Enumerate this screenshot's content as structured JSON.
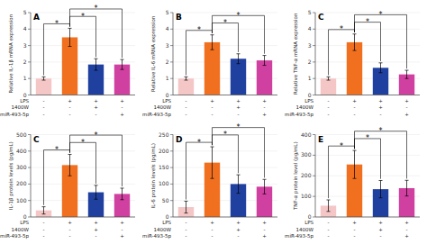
{
  "chart_data": [
    {
      "type": "bar",
      "title": "A",
      "y_label": "Relative IL-1β mRNA expression",
      "ylim": [
        0,
        5
      ],
      "yticks": [
        0,
        1,
        2,
        3,
        4,
        5
      ],
      "values": [
        1.0,
        3.5,
        1.85,
        1.85
      ],
      "errors": [
        0.1,
        0.55,
        0.35,
        0.3
      ],
      "colors": [
        "#f4c6c6",
        "#f07020",
        "#2040a0",
        "#d040a0"
      ],
      "x_rows": [
        {
          "label": "LPS",
          "signs": [
            "-",
            "+",
            "+",
            "+"
          ]
        },
        {
          "label": "1400W",
          "signs": [
            "-",
            "-",
            "+",
            "-"
          ]
        },
        {
          "label": "miR-493-5p",
          "signs": [
            "-",
            "-",
            "-",
            "+"
          ]
        }
      ],
      "brackets": [
        {
          "from": 0,
          "to": 1,
          "text": "*"
        },
        {
          "from": 1,
          "to": 2,
          "text": "*"
        },
        {
          "from": 1,
          "to": 3,
          "text": "*"
        }
      ]
    },
    {
      "type": "bar",
      "title": "B",
      "y_label": "Relative IL-6 mRNA expression",
      "ylim": [
        0,
        5
      ],
      "yticks": [
        0,
        1,
        2,
        3,
        4,
        5
      ],
      "values": [
        1.0,
        3.2,
        2.2,
        2.1
      ],
      "errors": [
        0.1,
        0.45,
        0.3,
        0.3
      ],
      "colors": [
        "#f4c6c6",
        "#f07020",
        "#2040a0",
        "#d040a0"
      ],
      "x_rows": [
        {
          "label": "LPS",
          "signs": [
            "-",
            "+",
            "+",
            "+"
          ]
        },
        {
          "label": "1400W",
          "signs": [
            "-",
            "-",
            "+",
            "-"
          ]
        },
        {
          "label": "miR-493-5p",
          "signs": [
            "-",
            "-",
            "-",
            "+"
          ]
        }
      ],
      "brackets": [
        {
          "from": 0,
          "to": 1,
          "text": "*"
        },
        {
          "from": 1,
          "to": 2,
          "text": "*"
        },
        {
          "from": 1,
          "to": 3,
          "text": "*"
        }
      ]
    },
    {
      "type": "bar",
      "title": "C",
      "y_label": "Relative TNF-α mRNA expression",
      "ylim": [
        0,
        5
      ],
      "yticks": [
        0,
        1,
        2,
        3,
        4,
        5
      ],
      "values": [
        1.0,
        3.2,
        1.65,
        1.25
      ],
      "errors": [
        0.1,
        0.5,
        0.3,
        0.25
      ],
      "colors": [
        "#f4c6c6",
        "#f07020",
        "#2040a0",
        "#d040a0"
      ],
      "x_rows": [
        {
          "label": "LPS",
          "signs": [
            "-",
            "+",
            "+",
            "+"
          ]
        },
        {
          "label": "1400W",
          "signs": [
            "-",
            "-",
            "+",
            "-"
          ]
        },
        {
          "label": "miR-493-5p",
          "signs": [
            "-",
            "-",
            "-",
            "+"
          ]
        }
      ],
      "brackets": [
        {
          "from": 0,
          "to": 1,
          "text": "*"
        },
        {
          "from": 1,
          "to": 2,
          "text": "*"
        },
        {
          "from": 1,
          "to": 3,
          "text": "*"
        }
      ]
    },
    {
      "type": "bar",
      "title": "C",
      "y_label": "IL-1β protein levels (pg/mL)",
      "ylim": [
        0,
        500
      ],
      "yticks": [
        0,
        100,
        200,
        300,
        400,
        500
      ],
      "values": [
        40,
        315,
        150,
        140
      ],
      "errors": [
        22,
        65,
        42,
        35
      ],
      "colors": [
        "#f4c6c6",
        "#f07020",
        "#2040a0",
        "#d040a0"
      ],
      "x_rows": [
        {
          "label": "LPS",
          "signs": [
            "-",
            "+",
            "+",
            "+"
          ]
        },
        {
          "label": "1400W",
          "signs": [
            "-",
            "-",
            "+",
            "-"
          ]
        },
        {
          "label": "miR-493-5p",
          "signs": [
            "-",
            "-",
            "-",
            "+"
          ]
        }
      ],
      "brackets": [
        {
          "from": 0,
          "to": 1,
          "text": "*"
        },
        {
          "from": 1,
          "to": 2,
          "text": "*"
        },
        {
          "from": 1,
          "to": 3,
          "text": "*"
        }
      ]
    },
    {
      "type": "bar",
      "title": "D",
      "y_label": "IL-6 protein levels (pg/mL)",
      "ylim": [
        0,
        250
      ],
      "yticks": [
        0,
        50,
        100,
        150,
        200,
        250
      ],
      "values": [
        30,
        165,
        100,
        92
      ],
      "errors": [
        18,
        48,
        28,
        22
      ],
      "colors": [
        "#f4c6c6",
        "#f07020",
        "#2040a0",
        "#d040a0"
      ],
      "x_rows": [
        {
          "label": "LPS",
          "signs": [
            "-",
            "+",
            "+",
            "+"
          ]
        },
        {
          "label": "1400W",
          "signs": [
            "-",
            "-",
            "+",
            "-"
          ]
        },
        {
          "label": "miR-493-5p",
          "signs": [
            "-",
            "-",
            "-",
            "+"
          ]
        }
      ],
      "brackets": [
        {
          "from": 0,
          "to": 1,
          "text": "*"
        },
        {
          "from": 1,
          "to": 2,
          "text": "*"
        },
        {
          "from": 1,
          "to": 3,
          "text": "*"
        }
      ]
    },
    {
      "type": "bar",
      "title": "E",
      "y_label": "TNF-α protein level (pg/mL)",
      "ylim": [
        0,
        400
      ],
      "yticks": [
        0,
        100,
        200,
        300,
        400
      ],
      "values": [
        55,
        255,
        135,
        140
      ],
      "errors": [
        28,
        68,
        42,
        38
      ],
      "colors": [
        "#f4c6c6",
        "#f07020",
        "#2040a0",
        "#d040a0"
      ],
      "x_rows": [
        {
          "label": "LPS",
          "signs": [
            "-",
            "+",
            "+",
            "+"
          ]
        },
        {
          "label": "1400W",
          "signs": [
            "-",
            "-",
            "+",
            "-"
          ]
        },
        {
          "label": "miR-493-5p",
          "signs": [
            "-",
            "-",
            "-",
            "+"
          ]
        }
      ],
      "brackets": [
        {
          "from": 0,
          "to": 1,
          "text": "*"
        },
        {
          "from": 1,
          "to": 2,
          "text": "*"
        },
        {
          "from": 1,
          "to": 3,
          "text": "*"
        }
      ]
    }
  ]
}
